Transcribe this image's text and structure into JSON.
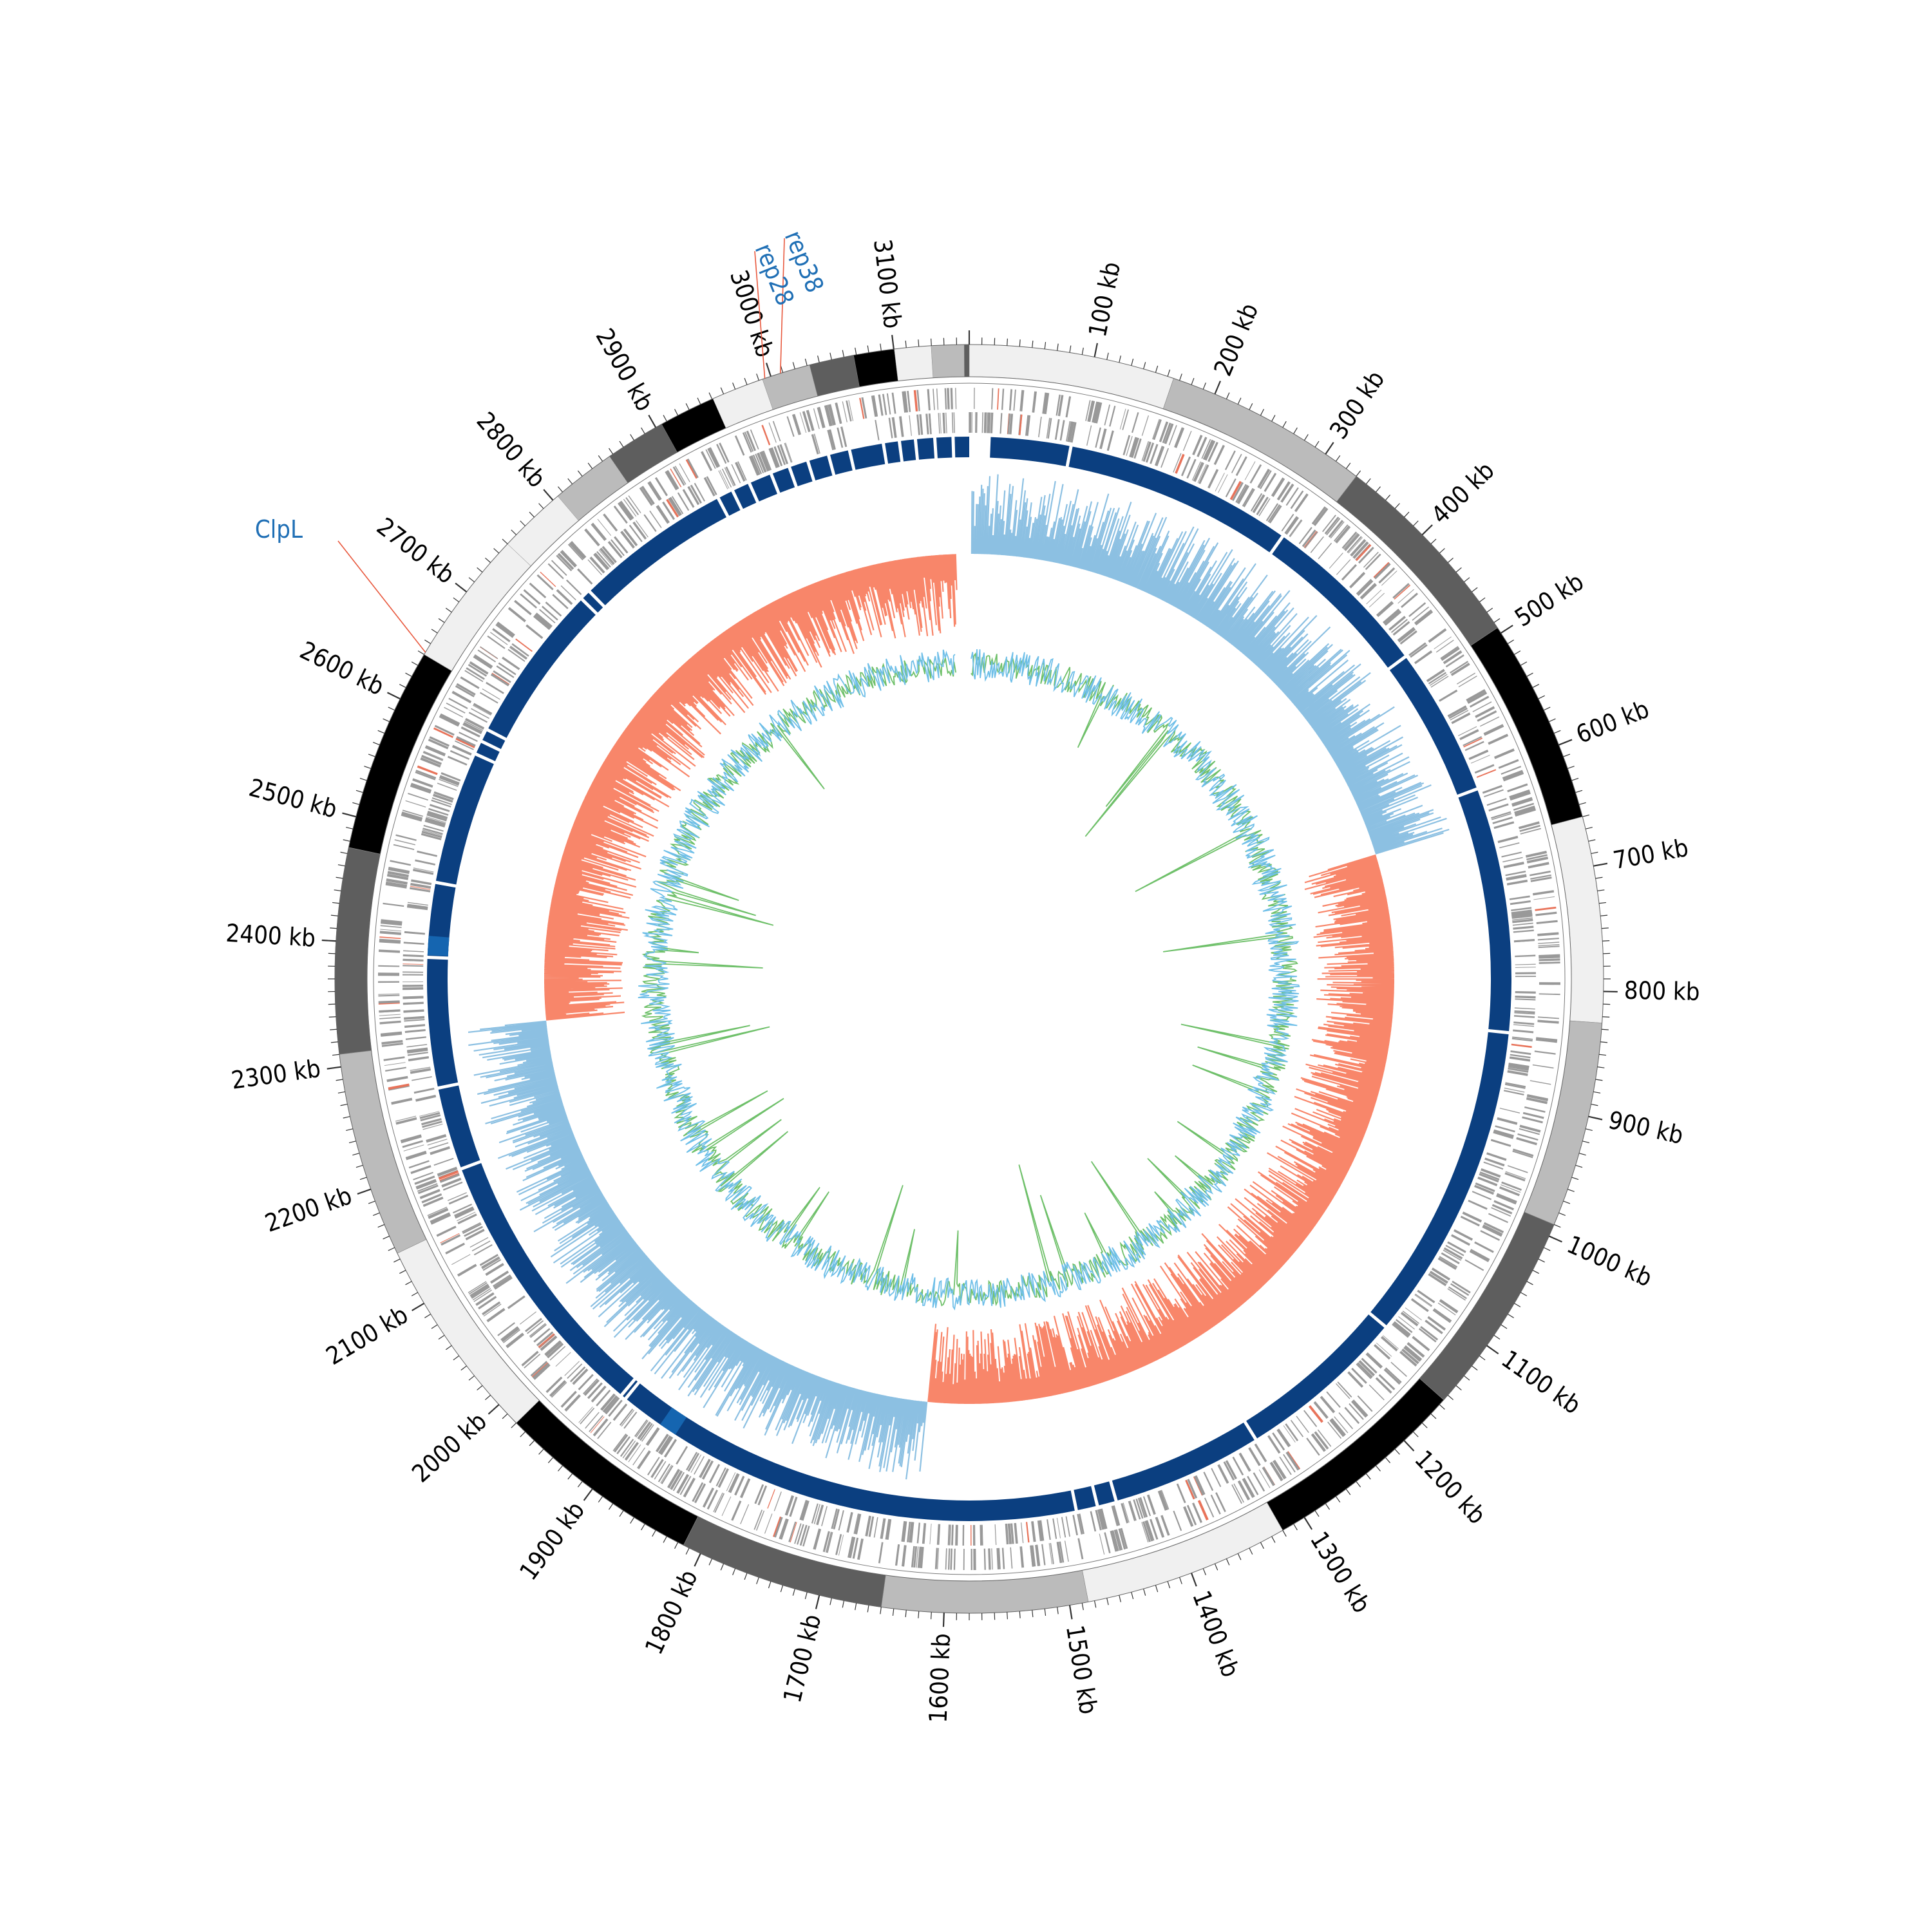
{
  "genome": {
    "length_kb": 3160,
    "label_suffix": " kb",
    "tick_labels_kb": [
      100,
      200,
      300,
      400,
      500,
      600,
      700,
      800,
      900,
      1000,
      1100,
      1200,
      1300,
      1400,
      1500,
      1600,
      1700,
      1800,
      1900,
      2000,
      2100,
      2200,
      2300,
      2400,
      2500,
      2600,
      2700,
      2800,
      2900,
      3000,
      3100
    ]
  },
  "annotations": [
    {
      "label": "rep38",
      "position_kb": 3008
    },
    {
      "label": "rep28",
      "position_kb": 2995
    },
    {
      "label": "ClpL",
      "position_kb": 2642
    }
  ],
  "colors": {
    "label_text": "#1f6fb5",
    "leader_line": "#e8573c",
    "contig_band": "#0b3f80",
    "contig_highlight": "#1565b0",
    "gene_marks": "#999999",
    "gene_highlight": "#e8735a",
    "gc_skew_positive": "#8cc0e2",
    "gc_skew_negative": "#f8866a",
    "gc_content_a": "#6fbfe8",
    "gc_content_b": "#6fc06a"
  },
  "chart_data": {
    "type": "circular-genome-map",
    "tracks": [
      "karyotype",
      "genes",
      "contigs",
      "gc_skew",
      "gc_content"
    ],
    "gc_skew_sign_switches_kb": [
      0,
      640,
      1630,
      2320,
      3160
    ]
  }
}
